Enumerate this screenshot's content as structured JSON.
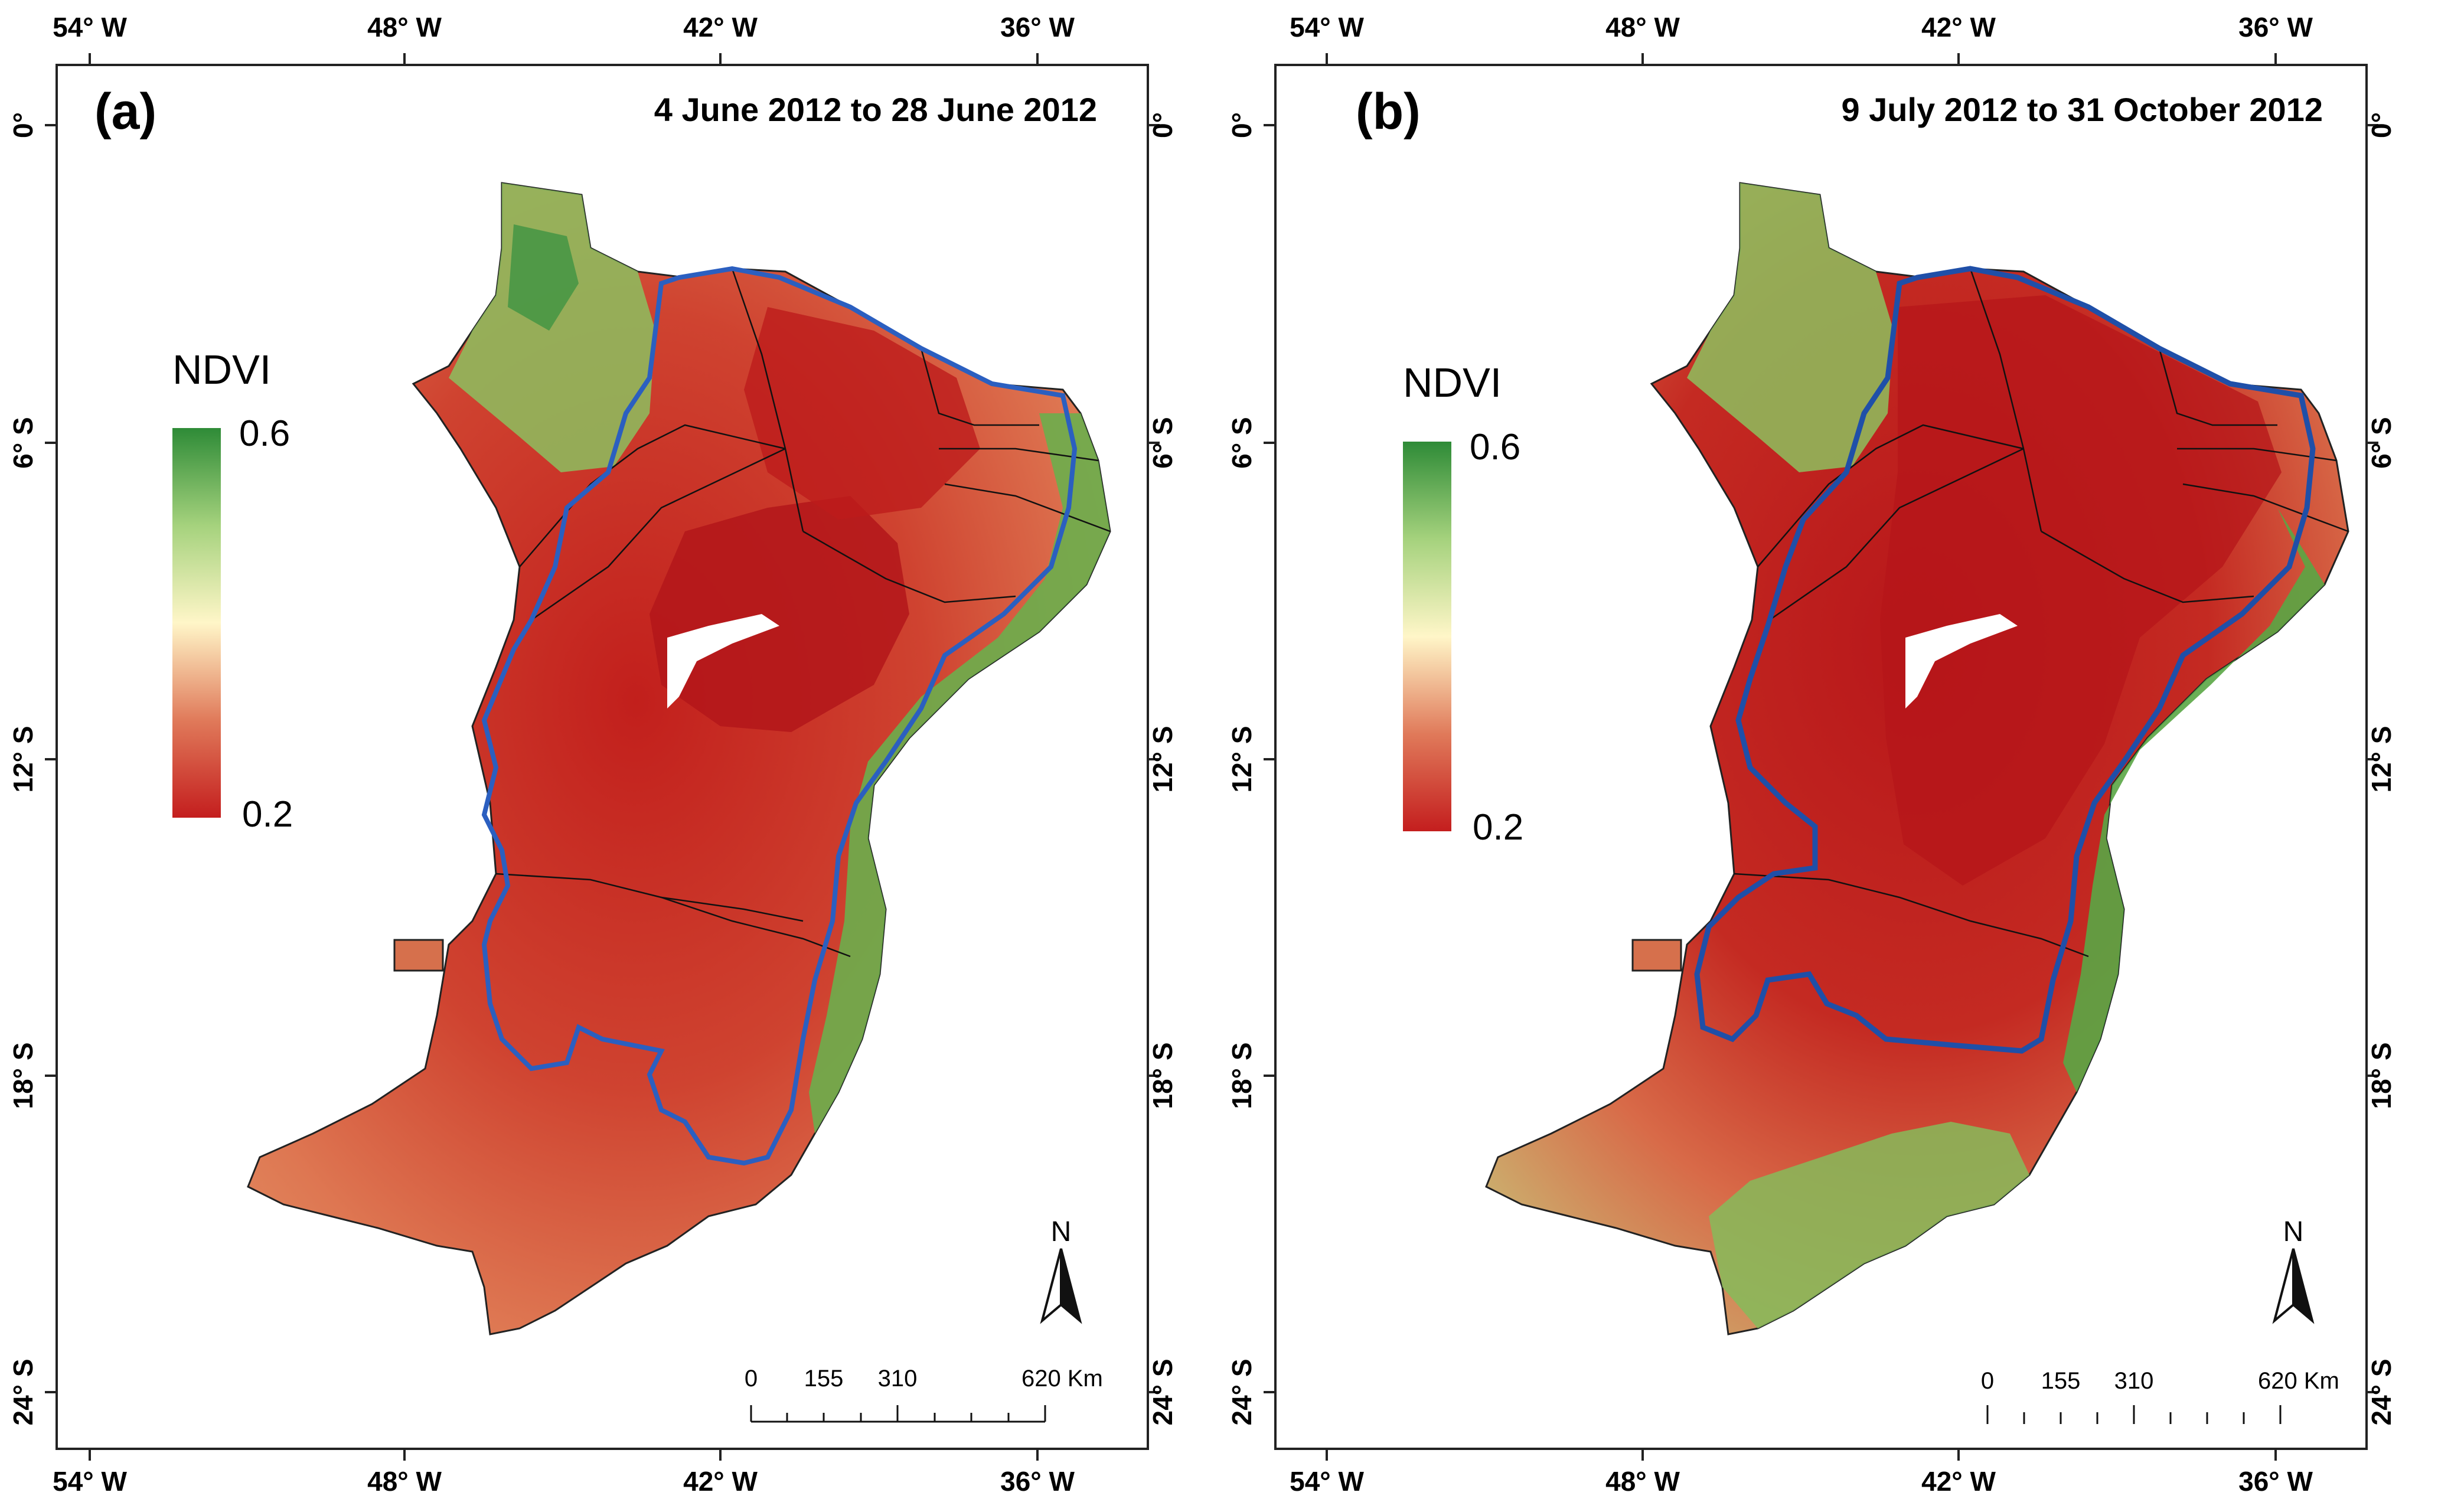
{
  "colors": {
    "ndvi_high": "#2e8b37",
    "ndvi_mid": "#fffbd0",
    "ndvi_low": "#c41e1e",
    "boundary": "#2b5fc0",
    "state_line": "#111111"
  },
  "panels": [
    {
      "label": "(a)",
      "period": "4 June 2012 to 28 June 2012",
      "legend": {
        "title": "NDVI",
        "max": "0.6",
        "min": "0.2"
      },
      "scale": {
        "ticks": [
          "0",
          "155",
          "310",
          "620 Km"
        ]
      },
      "north": "N",
      "lon_labels": [
        "54° W",
        "48° W",
        "42° W",
        "36° W"
      ],
      "lat_labels": [
        "0°",
        "6° S",
        "12° S",
        "18° S",
        "24° S"
      ]
    },
    {
      "label": "(b)",
      "period": "9 July 2012 to 31 October 2012",
      "legend": {
        "title": "NDVI",
        "max": "0.6",
        "min": "0.2"
      },
      "scale": {
        "ticks": [
          "0",
          "155",
          "310",
          "620 Km"
        ]
      },
      "north": "N",
      "lon_labels": [
        "54° W",
        "48° W",
        "42° W",
        "36° W"
      ],
      "lat_labels": [
        "0°",
        "6° S",
        "12° S",
        "18° S",
        "24° S"
      ]
    }
  ]
}
